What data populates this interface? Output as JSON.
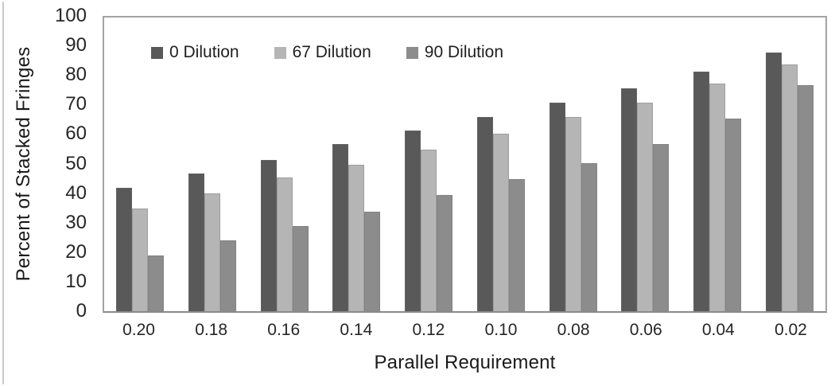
{
  "chart_data": {
    "type": "bar",
    "title": "",
    "xlabel": "Parallel Requirement",
    "ylabel": "Percent of Stacked Fringes",
    "categories": [
      "0.20",
      "0.18",
      "0.16",
      "0.14",
      "0.12",
      "0.10",
      "0.08",
      "0.06",
      "0.04",
      "0.02"
    ],
    "series": [
      {
        "name": "0 Dilution",
        "color": "#595959",
        "values": [
          42,
          47,
          51.5,
          57,
          61.5,
          66,
          71,
          76,
          81.5,
          88
        ]
      },
      {
        "name": "67 Dilution",
        "color": "#b5b5b5",
        "values": [
          35,
          40,
          45.5,
          50,
          55,
          60.5,
          66,
          71,
          77.5,
          84
        ]
      },
      {
        "name": "90 Dilution",
        "color": "#8c8c8c",
        "values": [
          19,
          24,
          29,
          34,
          39.5,
          45,
          50.5,
          57,
          65.5,
          77
        ]
      }
    ],
    "ylim": [
      0,
      100
    ],
    "yticks": [
      0,
      10,
      20,
      30,
      40,
      50,
      60,
      70,
      80,
      90,
      100
    ],
    "grid": false,
    "legend_position": "inside-top-left",
    "axis_border_color": "#a3a3a3",
    "text_color": "#262626"
  }
}
